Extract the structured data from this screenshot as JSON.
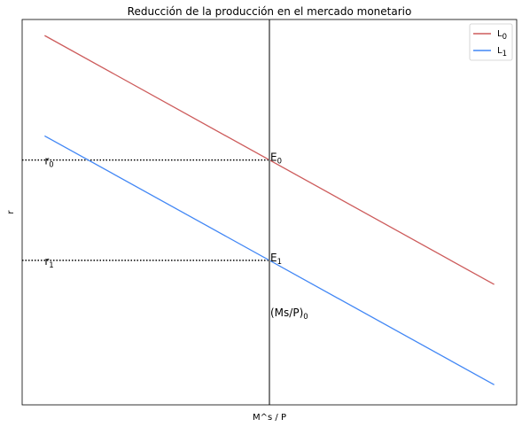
{
  "chart_data": {
    "type": "line",
    "title": "Reducción de la producción en el mercado monetario",
    "xlabel": "M^s / P",
    "ylabel": "r",
    "xlim": [
      0,
      11
    ],
    "ylim": [
      -0.4,
      9.2
    ],
    "x_ticks": [],
    "y_ticks": [],
    "grid": false,
    "legend_position": "top-right",
    "series": [
      {
        "name": "L",
        "name_subscript": "0",
        "color": "#cd5c5c",
        "x": [
          0.5,
          10.5
        ],
        "y": [
          8.8,
          2.6
        ]
      },
      {
        "name": "L",
        "name_subscript": "1",
        "color": "#4287f5",
        "x": [
          0.5,
          10.5
        ],
        "y": [
          6.3,
          0.1
        ]
      }
    ],
    "vertical_line": {
      "x": 5.5,
      "color": "#808080",
      "label_main": "(Ms/P)",
      "label_subscript": "0",
      "label_y": 1.9
    },
    "equilibria": [
      {
        "label_main": "E",
        "label_subscript": "0",
        "x": 5.5,
        "y": 5.7
      },
      {
        "label_main": "E",
        "label_subscript": "1",
        "x": 5.5,
        "y": 3.2
      }
    ],
    "rate_markers": [
      {
        "label_main": "r",
        "label_subscript": "0",
        "y": 5.7,
        "label_x": 0.5
      },
      {
        "label_main": "r",
        "label_subscript": "1",
        "y": 3.2,
        "label_x": 0.5
      }
    ]
  }
}
